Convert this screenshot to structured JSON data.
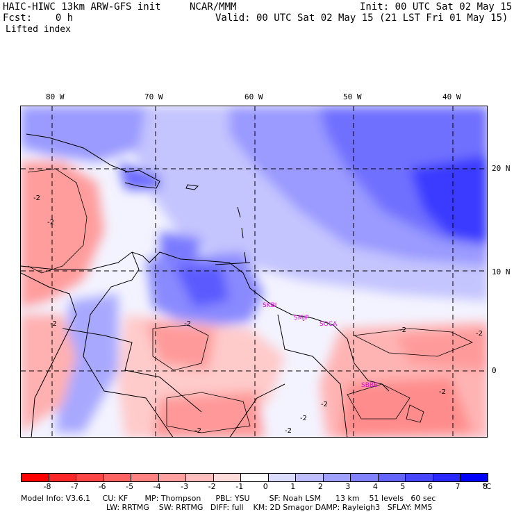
{
  "header": {
    "model": "HAIC-HIWC 13km ARW-GFS init",
    "org": "NCAR/MMM",
    "init": "Init: 00 UTC Sat 02 May 15",
    "fcst": "Fcst:    0 h",
    "valid": "Valid: 00 UTC Sat 02 May 15 (21 LST Fri 01 May 15)",
    "field": "Lifted index"
  },
  "axes": {
    "lon_labels": [
      "80 W",
      "70 W",
      "60 W",
      "50 W",
      "40 W"
    ],
    "lat_labels": [
      "20 N",
      "10 N",
      "0"
    ]
  },
  "stations": [
    "SKBI",
    "SMJP",
    "SOCA",
    "SBBE"
  ],
  "contour_labels": [
    "-2",
    "-2",
    "-2",
    "-2",
    "-2",
    "-2",
    "-2",
    "-2",
    "-2",
    "-2",
    "-2"
  ],
  "colorbar": {
    "labels": [
      "-8",
      "-7",
      "-6",
      "-5",
      "-4",
      "-3",
      "-2",
      "-1",
      "0",
      "1",
      "2",
      "3",
      "4",
      "5",
      "6",
      "7",
      "8"
    ],
    "unit": "°C",
    "colors": [
      "#ff0000",
      "#ff2828",
      "#ff4646",
      "#ff6464",
      "#ff8282",
      "#ffa0a0",
      "#ffbebe",
      "#ffdcdc",
      "#ffffff",
      "#dcdcff",
      "#bebeff",
      "#a0a0ff",
      "#8282ff",
      "#6464ff",
      "#4646ff",
      "#2828ff",
      "#0000ff"
    ]
  },
  "footer": {
    "line1": "Model Info: V3.6.1     CU: KF       MP: Thompson      PBL: YSU        SF: Noah LSM      13 km    51 levels   60 sec",
    "line2": "LW: RRTMG    SW: RRTMG   DIFF: full    KM: 2D Smagor DAMP: Rayleigh3   SFLAY: MM5"
  }
}
